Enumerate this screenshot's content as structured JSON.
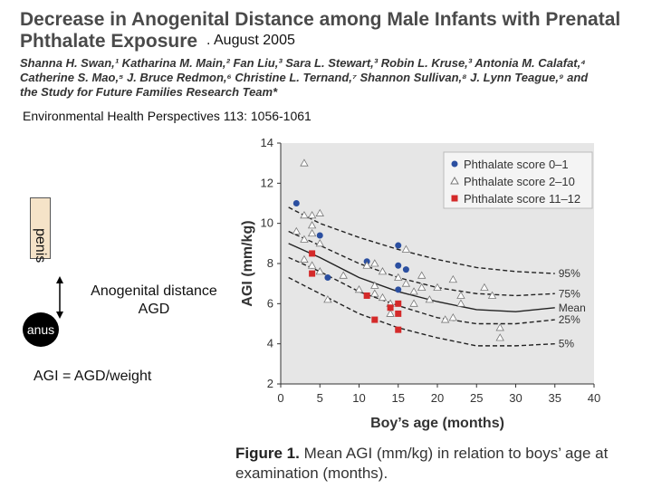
{
  "header": {
    "title_line1": "Decrease in Anogenital Distance among Male Infants with Prenatal",
    "title_line2": "Phthalate Exposure",
    "date": ". August 2005",
    "authors_line1": "Shanna H. Swan,¹ Katharina M. Main,² Fan Liu,³ Sara L. Stewart,³ Robin L. Kruse,³ Antonia M. Calafat,⁴",
    "authors_line2": "Catherine S. Mao,⁵ J. Bruce Redmon,⁶ Christine L. Ternand,⁷ Shannon Sullivan,⁸ J. Lynn Teague,⁹ and",
    "authors_line3": "the Study for Future Families Research Team*",
    "journal": "Environmental Health Perspectives 113: 1056-1061"
  },
  "diagram": {
    "penis_label": "penis",
    "anus_label": "anus",
    "agd_line1": "Anogenital distance",
    "agd_line2": "AGD",
    "agi_formula": "AGI = AGD/weight"
  },
  "caption": {
    "figure": "Figure 1.",
    "text": " Mean AGI (mm/kg) in relation to boys’ age at examination (months)."
  },
  "chart_data": {
    "type": "scatter",
    "title": "",
    "xlabel": "Boy’s age (months)",
    "ylabel": "AGI (mm/kg)",
    "xlim": [
      0,
      40
    ],
    "ylim": [
      2,
      14
    ],
    "xticks": [
      0,
      5,
      10,
      15,
      20,
      25,
      30,
      35,
      40
    ],
    "yticks": [
      2,
      4,
      6,
      8,
      10,
      12,
      14
    ],
    "legend_position": "top-right",
    "colors": {
      "plot_bg": "#e6e6e6",
      "blue": "#2b4fa0",
      "red": "#d42a2a",
      "curve": "#222222"
    },
    "series": [
      {
        "name": "Phthalate score 0–1",
        "marker": "circle",
        "color": "#2b4fa0",
        "points": [
          [
            2,
            11.0
          ],
          [
            5,
            9.4
          ],
          [
            6,
            7.3
          ],
          [
            11,
            8.1
          ],
          [
            15,
            8.9
          ],
          [
            15,
            7.9
          ],
          [
            16,
            7.7
          ],
          [
            15,
            6.7
          ]
        ]
      },
      {
        "name": "Phthalate score 2–10",
        "marker": "triangle",
        "color": "#ffffff",
        "points": [
          [
            3,
            13.0
          ],
          [
            2,
            9.6
          ],
          [
            3,
            10.4
          ],
          [
            4,
            10.4
          ],
          [
            4,
            9.9
          ],
          [
            5,
            10.5
          ],
          [
            3,
            9.2
          ],
          [
            4,
            9.5
          ],
          [
            5,
            9.0
          ],
          [
            3,
            8.2
          ],
          [
            4,
            7.9
          ],
          [
            5,
            7.6
          ],
          [
            6,
            6.2
          ],
          [
            8,
            7.4
          ],
          [
            10,
            6.7
          ],
          [
            11,
            7.9
          ],
          [
            12,
            8.0
          ],
          [
            13,
            7.6
          ],
          [
            12,
            6.9
          ],
          [
            12,
            6.5
          ],
          [
            13,
            6.3
          ],
          [
            14,
            6.0
          ],
          [
            14,
            5.5
          ],
          [
            15,
            7.3
          ],
          [
            16,
            8.7
          ],
          [
            16,
            7.0
          ],
          [
            17,
            6.6
          ],
          [
            17,
            6.0
          ],
          [
            18,
            7.4
          ],
          [
            18,
            6.8
          ],
          [
            19,
            6.2
          ],
          [
            20,
            6.8
          ],
          [
            21,
            5.2
          ],
          [
            22,
            7.2
          ],
          [
            22,
            5.3
          ],
          [
            23,
            6.4
          ],
          [
            23,
            6.0
          ],
          [
            26,
            6.8
          ],
          [
            27,
            6.4
          ],
          [
            28,
            4.8
          ],
          [
            28,
            4.3
          ]
        ]
      },
      {
        "name": "Phthalate score 11–12",
        "marker": "square",
        "color": "#d42a2a",
        "points": [
          [
            4,
            8.5
          ],
          [
            4,
            7.5
          ],
          [
            11,
            6.4
          ],
          [
            12,
            5.2
          ],
          [
            14,
            5.8
          ],
          [
            15,
            6.0
          ],
          [
            15,
            5.5
          ],
          [
            15,
            4.7
          ]
        ]
      }
    ],
    "curves": [
      {
        "name": "95%",
        "points": [
          [
            1,
            10.8
          ],
          [
            5,
            10.0
          ],
          [
            10,
            9.3
          ],
          [
            15,
            8.7
          ],
          [
            20,
            8.2
          ],
          [
            25,
            7.8
          ],
          [
            30,
            7.6
          ],
          [
            35,
            7.5
          ]
        ]
      },
      {
        "name": "75%",
        "points": [
          [
            1,
            9.6
          ],
          [
            5,
            8.9
          ],
          [
            10,
            8.0
          ],
          [
            15,
            7.3
          ],
          [
            20,
            6.8
          ],
          [
            25,
            6.5
          ],
          [
            30,
            6.4
          ],
          [
            35,
            6.5
          ]
        ]
      },
      {
        "name": "Mean",
        "points": [
          [
            1,
            9.0
          ],
          [
            5,
            8.3
          ],
          [
            10,
            7.3
          ],
          [
            15,
            6.6
          ],
          [
            20,
            6.1
          ],
          [
            25,
            5.7
          ],
          [
            30,
            5.6
          ],
          [
            35,
            5.8
          ]
        ]
      },
      {
        "name": "25%",
        "points": [
          [
            1,
            8.3
          ],
          [
            5,
            7.6
          ],
          [
            10,
            6.6
          ],
          [
            15,
            5.9
          ],
          [
            20,
            5.3
          ],
          [
            25,
            5.0
          ],
          [
            30,
            5.0
          ],
          [
            35,
            5.2
          ]
        ]
      },
      {
        "name": "5%",
        "points": [
          [
            1,
            7.3
          ],
          [
            5,
            6.5
          ],
          [
            10,
            5.5
          ],
          [
            15,
            4.8
          ],
          [
            20,
            4.3
          ],
          [
            25,
            3.9
          ],
          [
            30,
            3.9
          ],
          [
            35,
            4.0
          ]
        ]
      }
    ]
  }
}
